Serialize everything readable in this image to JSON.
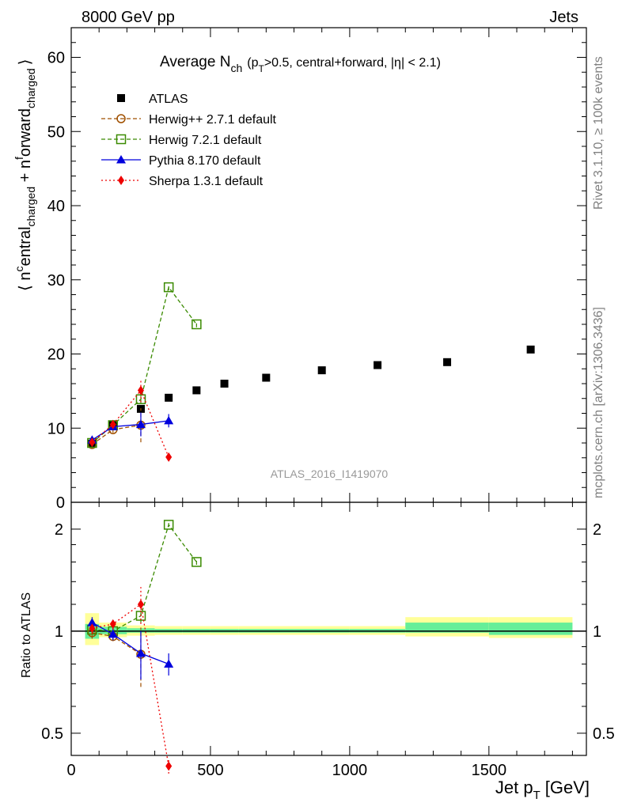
{
  "header": {
    "left": "8000 GeV pp",
    "right": "Jets"
  },
  "side_labels": {
    "rivet": "Rivet 3.1.10, ≥ 100k events",
    "mcplots": "mcplots.cern.ch [arXiv:1306.3436]"
  },
  "analysis_id": "ATLAS_2016_I1419070",
  "colors": {
    "atlas": "#000000",
    "herwigpp": "#a05000",
    "herwig7": "#3a8a00",
    "pythia": "#0000dd",
    "sherpa": "#ee0000",
    "band_yellow": "#ffff99",
    "band_green": "#66ee99"
  },
  "chart_data": [
    {
      "type": "scatter",
      "title": "Average N_ch (p_T>0.5, central+forward, |η| < 2.1)",
      "title_parts": {
        "main": "Average N",
        "main_sub": "ch",
        "paren_open": "(p",
        "paren_sub": "T",
        "rest": ">0.5, central+forward, |η| < 2.1)"
      },
      "ylabel": "⟨ n^central_charged + n^forward_charged ⟩",
      "ylabel_parts": [
        "⟨ n",
        "c",
        "entral",
        "charged",
        " + n",
        "f",
        "orward",
        "charged",
        "⟩"
      ],
      "xlabel": "Jet p_T [GeV]",
      "xlabel_parts": {
        "main": "Jet p",
        "sub": "T",
        "unit": "[GeV]"
      },
      "xlim": [
        0,
        1850
      ],
      "ylim": [
        0,
        64
      ],
      "x_ticks": [
        0,
        500,
        1000,
        1500
      ],
      "y_ticks": [
        0,
        10,
        20,
        30,
        40,
        50,
        60
      ],
      "y_tick_labels": [
        "0",
        "10",
        "20",
        "30",
        "40",
        "50",
        "60"
      ],
      "legend_position": "top-left",
      "series": [
        {
          "name": "ATLAS",
          "key": "atlas",
          "marker": "square-filled",
          "line": "none",
          "x": [
            75,
            150,
            250,
            350,
            450,
            550,
            700,
            900,
            1100,
            1350,
            1650
          ],
          "y": [
            7.9,
            10.4,
            12.6,
            14.1,
            15.1,
            16.0,
            16.8,
            17.8,
            18.5,
            18.9,
            20.6
          ]
        },
        {
          "name": "Herwig++ 2.7.1 default",
          "key": "herwigpp",
          "marker": "circle-open",
          "line": "dashed",
          "x": [
            75,
            150,
            250
          ],
          "y": [
            7.8,
            9.8,
            10.4
          ],
          "yerr": [
            0.3,
            0.4,
            2.3
          ]
        },
        {
          "name": "Herwig 7.2.1 default",
          "key": "herwig7",
          "marker": "square-open",
          "line": "dashed",
          "x": [
            75,
            150,
            250,
            350,
            450
          ],
          "y": [
            8.0,
            10.4,
            13.9,
            29.0,
            24.0
          ],
          "yerr": [
            0.2,
            0.3,
            0.5,
            0.4,
            0.4
          ]
        },
        {
          "name": "Pythia 8.170 default",
          "key": "pythia",
          "marker": "triangle-filled",
          "line": "solid",
          "x": [
            75,
            150,
            250,
            350
          ],
          "y": [
            8.4,
            10.2,
            10.5,
            11.0
          ],
          "yerr": [
            0.3,
            0.4,
            1.6,
            0.9
          ]
        },
        {
          "name": "Sherpa 1.3.1 default",
          "key": "sherpa",
          "marker": "diamond-filled",
          "line": "dotted",
          "x": [
            75,
            150,
            250,
            350
          ],
          "y": [
            8.1,
            10.5,
            15.1,
            6.1
          ],
          "yerr": [
            0.3,
            0.4,
            1.6,
            0.3
          ]
        }
      ]
    },
    {
      "type": "scatter",
      "ylabel": "Ratio to ATLAS",
      "xlim": [
        0,
        1850
      ],
      "ylim": [
        0.43,
        2.4
      ],
      "y_scale": "log",
      "y_ticks": [
        0.5,
        1,
        2
      ],
      "y_tick_labels": [
        "0.5",
        "1",
        "2"
      ],
      "x_ticks": [
        0,
        500,
        1000,
        1500
      ],
      "x_tick_labels": [
        "0",
        "500",
        "1000",
        "1500"
      ],
      "reference": 1.0,
      "bands": [
        {
          "x": [
            50,
            100
          ],
          "total": [
            0.91,
            1.13
          ],
          "stat": [
            0.95,
            1.05
          ]
        },
        {
          "x": [
            100,
            200
          ],
          "total": [
            0.96,
            1.06
          ],
          "stat": [
            0.98,
            1.03
          ]
        },
        {
          "x": [
            200,
            300
          ],
          "total": [
            0.97,
            1.04
          ],
          "stat": [
            0.99,
            1.02
          ]
        },
        {
          "x": [
            300,
            400
          ],
          "total": [
            0.975,
            1.035
          ],
          "stat": [
            0.99,
            1.015
          ]
        },
        {
          "x": [
            400,
            500
          ],
          "total": [
            0.975,
            1.035
          ],
          "stat": [
            0.99,
            1.015
          ]
        },
        {
          "x": [
            500,
            600
          ],
          "total": [
            0.975,
            1.035
          ],
          "stat": [
            0.99,
            1.015
          ]
        },
        {
          "x": [
            600,
            800
          ],
          "total": [
            0.975,
            1.035
          ],
          "stat": [
            0.99,
            1.015
          ]
        },
        {
          "x": [
            800,
            1000
          ],
          "total": [
            0.975,
            1.035
          ],
          "stat": [
            0.99,
            1.015
          ]
        },
        {
          "x": [
            1000,
            1200
          ],
          "total": [
            0.975,
            1.035
          ],
          "stat": [
            0.99,
            1.015
          ]
        },
        {
          "x": [
            1200,
            1500
          ],
          "total": [
            0.965,
            1.1
          ],
          "stat": [
            0.99,
            1.06
          ]
        },
        {
          "x": [
            1500,
            1800
          ],
          "total": [
            0.955,
            1.1
          ],
          "stat": [
            0.975,
            1.06
          ]
        }
      ],
      "series": [
        {
          "name": "Herwig++ 2.7.1 default",
          "key": "herwigpp",
          "marker": "circle-open",
          "line": "dashed",
          "x": [
            75,
            150,
            250
          ],
          "y": [
            0.99,
            0.965,
            0.855
          ],
          "yerr": [
            0.04,
            0.03,
            0.17
          ]
        },
        {
          "name": "Herwig 7.2.1 default",
          "key": "herwig7",
          "marker": "square-open",
          "line": "dashed",
          "x": [
            75,
            150,
            250,
            350,
            450
          ],
          "y": [
            1.01,
            1.0,
            1.11,
            2.06,
            1.6
          ],
          "yerr": [
            0.03,
            0.03,
            0.05,
            0.03,
            0.03
          ]
        },
        {
          "name": "Pythia 8.170 default",
          "key": "pythia",
          "marker": "triangle-filled",
          "line": "solid",
          "x": [
            75,
            150,
            250,
            350
          ],
          "y": [
            1.06,
            0.98,
            0.86,
            0.8
          ],
          "yerr": [
            0.04,
            0.04,
            0.14,
            0.06
          ]
        },
        {
          "name": "Sherpa 1.3.1 default",
          "key": "sherpa",
          "marker": "diamond-filled",
          "line": "dotted",
          "x": [
            75,
            150,
            250,
            350
          ],
          "y": [
            1.02,
            1.05,
            1.2,
            0.4
          ],
          "yerr": [
            0.04,
            0.04,
            0.15,
            0.02
          ]
        }
      ]
    }
  ]
}
